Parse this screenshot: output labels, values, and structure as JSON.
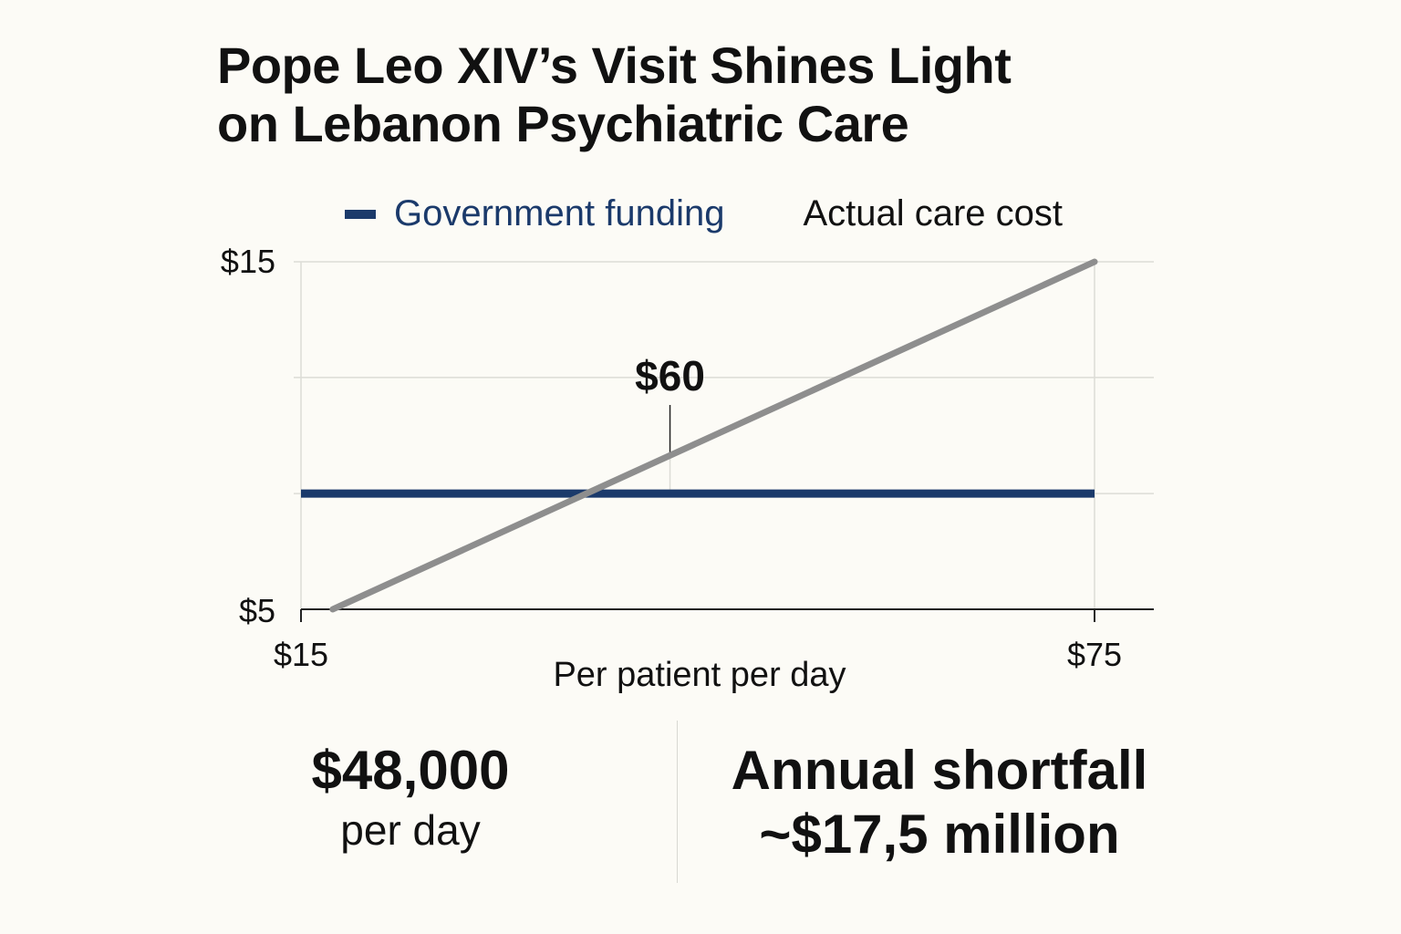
{
  "title_line1": "Pope Leo XIV’s Visit Shines Light",
  "title_line2": "on Lebanon Psychiatric Care",
  "chart_data": {
    "type": "line",
    "title": "Pope Leo XIV’s Visit Shines Light on Lebanon Psychiatric Care",
    "xlabel": "Per patient per day",
    "ylabel": "",
    "xlim": [
      15,
      75
    ],
    "ylim": [
      5,
      15
    ],
    "x_tick_labels": [
      "$15",
      "$75"
    ],
    "x_ticks": [
      15,
      75
    ],
    "y_tick_labels": [
      "$15",
      "$5"
    ],
    "y_ticks": [
      15,
      5
    ],
    "y_gridlines": [
      5,
      8.33,
      11.67,
      15
    ],
    "grid": true,
    "legend_placement": "top",
    "series": [
      {
        "name": "Government funding",
        "color": "#1b3a6b",
        "x": [
          15,
          75
        ],
        "y": [
          8.33,
          8.33
        ]
      },
      {
        "name": "Actual care cost",
        "color": "#8e8e8e",
        "x": [
          17.4,
          75
        ],
        "y": [
          5,
          15
        ]
      }
    ],
    "annotations": [
      {
        "text": "$60",
        "x": 42.9,
        "y": 10
      }
    ]
  },
  "stats": {
    "left_value": "$48,000",
    "left_label": "per day",
    "right_line1": "Annual shortfall",
    "right_line2": "~$17,5 million"
  }
}
